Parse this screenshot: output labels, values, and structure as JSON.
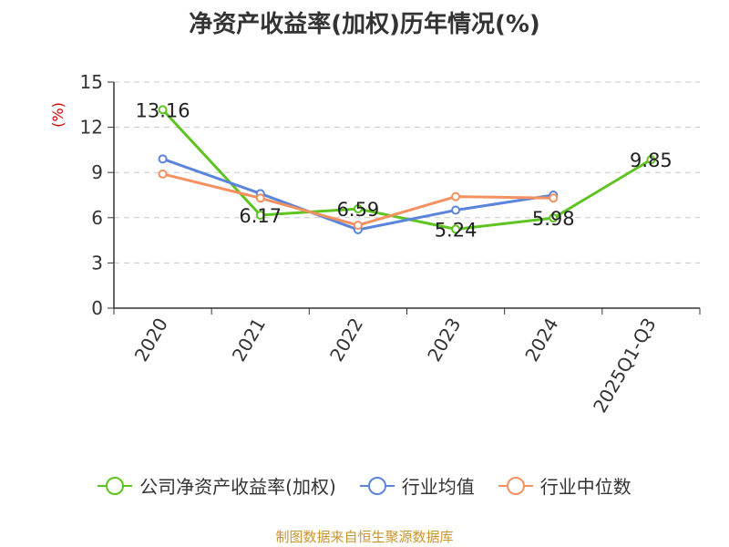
{
  "title": "净资产收益率(加权)历年情况(%)",
  "footer": "制图数据来自恒生聚源数据库",
  "chart_data": {
    "type": "line",
    "title": "净资产收益率(加权)历年情况(%)",
    "ylabel": "(%)",
    "ylim": [
      0,
      15
    ],
    "yticks": [
      0,
      3,
      6,
      9,
      12,
      15
    ],
    "grid": true,
    "legend_position": "bottom",
    "categories": [
      "2020",
      "2021",
      "2022",
      "2023",
      "2024",
      "2025Q1-Q3"
    ],
    "series": [
      {
        "name": "公司净资产收益率(加权)",
        "color": "#5ec421",
        "values": [
          13.16,
          6.17,
          6.59,
          5.24,
          5.98,
          9.85
        ],
        "labels": [
          "13.16",
          "6.17",
          "6.59",
          "5.24",
          "5.98",
          "9.85"
        ]
      },
      {
        "name": "行业均值",
        "color": "#5b85dc",
        "values": [
          9.9,
          7.6,
          5.2,
          6.5,
          7.5,
          null
        ]
      },
      {
        "name": "行业中位数",
        "color": "#f39160",
        "values": [
          8.9,
          7.3,
          5.5,
          7.4,
          7.3,
          null
        ]
      }
    ]
  }
}
